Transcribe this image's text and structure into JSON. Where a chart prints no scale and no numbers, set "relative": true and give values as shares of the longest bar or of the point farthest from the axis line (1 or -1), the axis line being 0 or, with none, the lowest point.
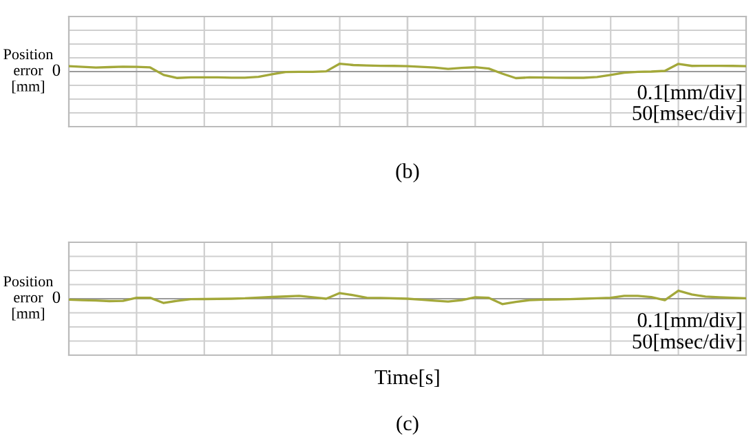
{
  "chart_data": [
    {
      "type": "line",
      "relative": true,
      "ylabel": "Position\nerror\n[mm]",
      "annotations": [
        "0",
        "0.1[mm/div]",
        "50[msec/div]",
        "(b)"
      ],
      "grid": true,
      "categories": [
        null,
        null,
        null,
        null,
        null,
        null,
        null,
        null,
        null,
        null,
        null,
        null,
        null,
        null,
        null,
        null,
        null,
        null,
        null,
        null,
        null,
        null,
        null,
        null,
        null,
        null,
        null,
        null,
        null,
        null,
        null,
        null,
        null,
        null,
        null,
        null,
        null,
        null,
        null,
        null,
        null,
        null,
        null,
        null,
        null,
        null,
        null,
        null,
        null,
        null,
        null
      ],
      "series": [
        {
          "color": "#a3a83a",
          "values": [
            0.69,
            0.6,
            0.52,
            0.57,
            0.62,
            0.6,
            0.53,
            -0.43,
            -0.81,
            -0.74,
            -0.74,
            -0.74,
            -0.78,
            -0.78,
            -0.66,
            -0.34,
            -0.05,
            -0.03,
            -0.03,
            0.03,
            1,
            0.83,
            0.78,
            0.74,
            0.72,
            0.69,
            0.6,
            0.52,
            0.34,
            0.47,
            0.55,
            0.38,
            -0.26,
            -0.83,
            -0.74,
            -0.76,
            -0.78,
            -0.79,
            -0.79,
            -0.69,
            -0.43,
            -0.14,
            -0.03,
            0,
            0.09,
            0.98,
            0.72,
            0.74,
            0.74,
            0.72,
            0.69
          ]
        }
      ]
    },
    {
      "type": "line",
      "relative": true,
      "ylabel": "Position\nerror\n[mm]",
      "xlabel": "Time[s]",
      "annotations": [
        "0",
        "0.1[mm/div]",
        "50[msec/div]",
        "(c)"
      ],
      "grid": true,
      "categories": [
        null,
        null,
        null,
        null,
        null,
        null,
        null,
        null,
        null,
        null,
        null,
        null,
        null,
        null,
        null,
        null,
        null,
        null,
        null,
        null,
        null,
        null,
        null,
        null,
        null,
        null,
        null,
        null,
        null,
        null,
        null,
        null,
        null,
        null,
        null,
        null,
        null,
        null,
        null,
        null,
        null,
        null,
        null,
        null,
        null,
        null,
        null,
        null,
        null,
        null,
        null
      ],
      "series": [
        {
          "color": "#a3a83a",
          "values": [
            -0.12,
            -0.18,
            -0.23,
            -0.3,
            -0.26,
            0.11,
            0.12,
            -0.53,
            -0.26,
            -0.05,
            -0.04,
            -0.02,
            0,
            0.05,
            0.14,
            0.21,
            0.28,
            0.35,
            0.18,
            0,
            0.7,
            0.44,
            0.12,
            0.09,
            0.04,
            0,
            -0.12,
            -0.25,
            -0.35,
            -0.18,
            0.18,
            0.11,
            -0.67,
            -0.39,
            -0.18,
            -0.12,
            -0.09,
            -0.05,
            0,
            0.05,
            0.12,
            0.35,
            0.35,
            0.21,
            -0.18,
            1,
            0.53,
            0.26,
            0.18,
            0.11,
            0.05
          ]
        }
      ]
    }
  ]
}
